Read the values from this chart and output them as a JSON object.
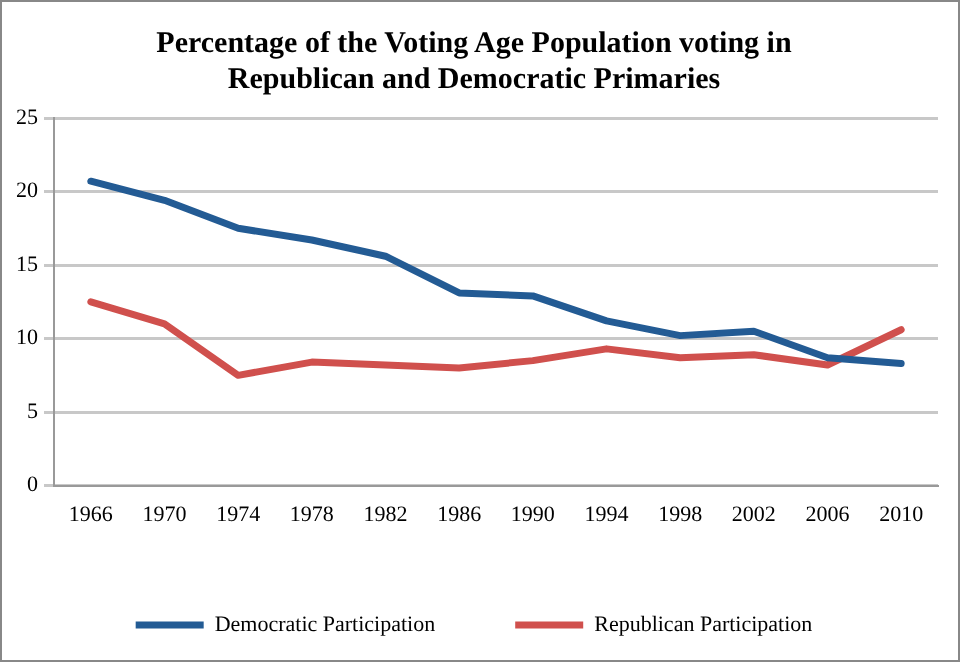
{
  "chart_data": {
    "type": "line",
    "title": "Percentage of the Voting Age Population voting in Republican and Democratic Primaries",
    "categories": [
      "1966",
      "1970",
      "1974",
      "1978",
      "1982",
      "1986",
      "1990",
      "1994",
      "1998",
      "2002",
      "2006",
      "2010"
    ],
    "series": [
      {
        "name": "Democratic Participation",
        "color": "#235b94",
        "values": [
          20.7,
          19.4,
          17.5,
          16.7,
          15.6,
          13.1,
          12.9,
          11.2,
          10.2,
          10.5,
          8.7,
          8.3
        ]
      },
      {
        "name": "Republican Participation",
        "color": "#d0504d",
        "values": [
          12.5,
          11.0,
          7.5,
          8.4,
          8.2,
          8.0,
          8.5,
          9.3,
          8.7,
          8.9,
          8.2,
          10.6
        ]
      }
    ],
    "ylim": [
      0,
      25
    ],
    "yticks": [
      0,
      5,
      10,
      15,
      20,
      25
    ],
    "grid": "y",
    "legend": "bottom",
    "marker": "none",
    "line_style": "solid"
  }
}
